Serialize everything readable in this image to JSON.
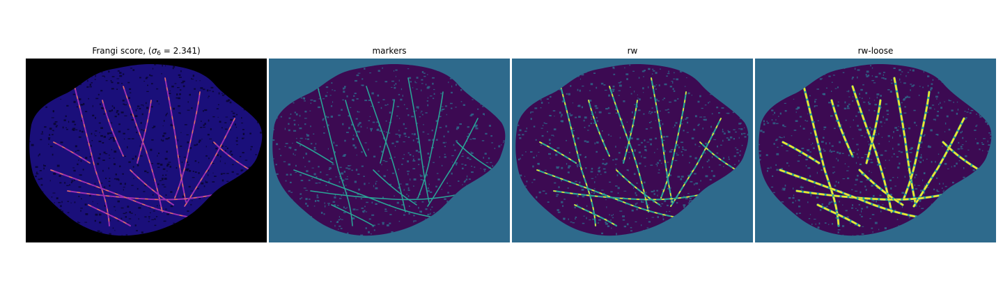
{
  "panels": [
    {
      "id": "frangi",
      "title_prefix": "Frangi score, (",
      "title_symbol": "σ",
      "title_subscript": "6",
      "title_suffix": " = 2.341)",
      "colormap": "magma",
      "colors": {
        "background": "#000000",
        "body": "#1a0f7a",
        "texture": "#0a0633",
        "vessel": "#9b2fb0",
        "vessel_high": "#f08a3a"
      }
    },
    {
      "id": "markers",
      "title": "markers",
      "colormap": "viridis",
      "colors": {
        "background": "#2e6a8c",
        "body": "#3c0a52",
        "texture": "#2e6a8c",
        "vessel": "#2aa396"
      }
    },
    {
      "id": "rw",
      "title": "rw",
      "colormap": "viridis",
      "colors": {
        "background": "#2e6a8c",
        "body": "#3c0a52",
        "texture": "#2e6a8c",
        "vessel": "#2aa396",
        "vessel_high": "#f2e52a"
      }
    },
    {
      "id": "rw-loose",
      "title": "rw-loose",
      "colormap": "viridis",
      "colors": {
        "background": "#2e6a8c",
        "body": "#3c0a52",
        "texture": "#2e6a8c",
        "vessel": "#2aa396",
        "vessel_high": "#f2e52a"
      }
    }
  ]
}
